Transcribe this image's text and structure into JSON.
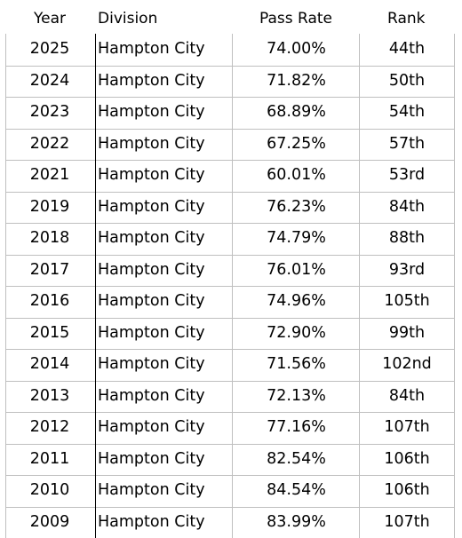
{
  "headers": {
    "year": "Year",
    "division": "Division",
    "pass_rate": "Pass Rate",
    "rank": "Rank"
  },
  "rows": [
    {
      "year": "2025",
      "division": "Hampton City",
      "pass_rate": "74.00%",
      "rank": "44th"
    },
    {
      "year": "2024",
      "division": "Hampton City",
      "pass_rate": "71.82%",
      "rank": "50th"
    },
    {
      "year": "2023",
      "division": "Hampton City",
      "pass_rate": "68.89%",
      "rank": "54th"
    },
    {
      "year": "2022",
      "division": "Hampton City",
      "pass_rate": "67.25%",
      "rank": "57th"
    },
    {
      "year": "2021",
      "division": "Hampton City",
      "pass_rate": "60.01%",
      "rank": "53rd"
    },
    {
      "year": "2019",
      "division": "Hampton City",
      "pass_rate": "76.23%",
      "rank": "84th"
    },
    {
      "year": "2018",
      "division": "Hampton City",
      "pass_rate": "74.79%",
      "rank": "88th"
    },
    {
      "year": "2017",
      "division": "Hampton City",
      "pass_rate": "76.01%",
      "rank": "93rd"
    },
    {
      "year": "2016",
      "division": "Hampton City",
      "pass_rate": "74.96%",
      "rank": "105th"
    },
    {
      "year": "2015",
      "division": "Hampton City",
      "pass_rate": "72.90%",
      "rank": "99th"
    },
    {
      "year": "2014",
      "division": "Hampton City",
      "pass_rate": "71.56%",
      "rank": "102nd"
    },
    {
      "year": "2013",
      "division": "Hampton City",
      "pass_rate": "72.13%",
      "rank": "84th"
    },
    {
      "year": "2012",
      "division": "Hampton City",
      "pass_rate": "77.16%",
      "rank": "107th"
    },
    {
      "year": "2011",
      "division": "Hampton City",
      "pass_rate": "82.54%",
      "rank": "106th"
    },
    {
      "year": "2010",
      "division": "Hampton City",
      "pass_rate": "84.54%",
      "rank": "106th"
    },
    {
      "year": "2009",
      "division": "Hampton City",
      "pass_rate": "83.99%",
      "rank": "107th"
    }
  ]
}
